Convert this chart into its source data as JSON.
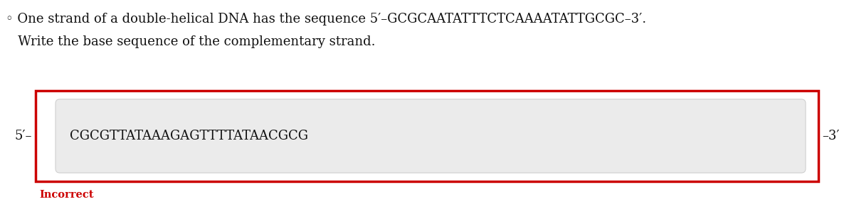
{
  "bg_color": "#ffffff",
  "question_line": "◦ One strand of a double-helical DNA has the sequence 5′–GCGCAATATTTCTCAAAATATTGCGC–3′.",
  "subquestion_line": "   Write the base sequence of the complementary strand.",
  "label_left": "5′–",
  "label_right": "–3′",
  "answer_text_clean": "CGCGTTATAAAGAGTTTTATAACGCG",
  "incorrect_label": "Incorrect",
  "incorrect_color": "#cc0000",
  "box_border_color": "#cc0000",
  "input_bg_color": "#ebebeb",
  "input_border_color": "#d0d0d0",
  "question_fontsize": 13,
  "subq_fontsize": 13,
  "label_fontsize": 13,
  "answer_fontsize": 13,
  "incorrect_fontsize": 10.5
}
